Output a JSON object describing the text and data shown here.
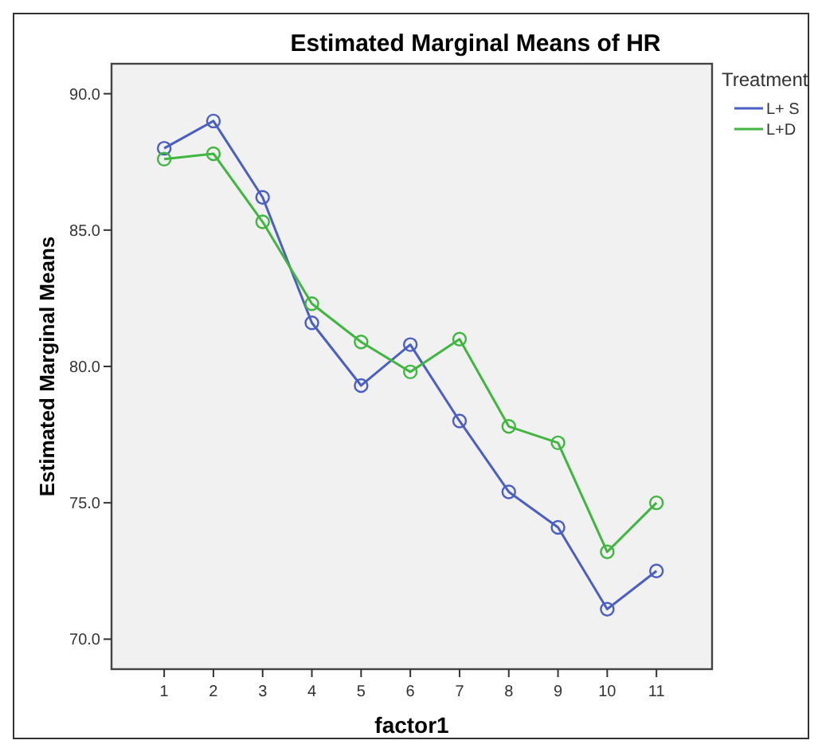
{
  "chart_data": {
    "type": "line",
    "title": "Estimated Marginal Means of HR",
    "xlabel": "factor1",
    "ylabel": "Estimated Marginal Means",
    "legend_title": "Treatment",
    "legend": "top right",
    "marker": "circle",
    "line_style": "solid",
    "grid": false,
    "x": [
      1,
      2,
      3,
      4,
      5,
      6,
      7,
      8,
      9,
      10,
      11
    ],
    "xlim": [
      -0.07,
      12.13
    ],
    "xticks": [
      1,
      2,
      3,
      4,
      5,
      6,
      7,
      8,
      9,
      10,
      11
    ],
    "ylim": [
      68.9,
      91.1
    ],
    "yticks": [
      {
        "value": 70,
        "label": "70.0"
      },
      {
        "value": 75,
        "label": "75.0"
      },
      {
        "value": 80,
        "label": "80.0"
      },
      {
        "value": 85,
        "label": "85.0"
      },
      {
        "value": 90,
        "label": "90.0"
      }
    ],
    "series": [
      {
        "name": "L+ S",
        "color": "#4a5fc1",
        "values": [
          88.0,
          89.0,
          86.2,
          81.6,
          79.3,
          80.8,
          78.0,
          75.4,
          74.1,
          71.1,
          72.5
        ]
      },
      {
        "name": "L+D",
        "color": "#3fb63f",
        "values": [
          87.6,
          87.8,
          85.3,
          82.3,
          80.9,
          79.8,
          81.0,
          77.8,
          77.2,
          73.2,
          75.0
        ]
      }
    ]
  }
}
